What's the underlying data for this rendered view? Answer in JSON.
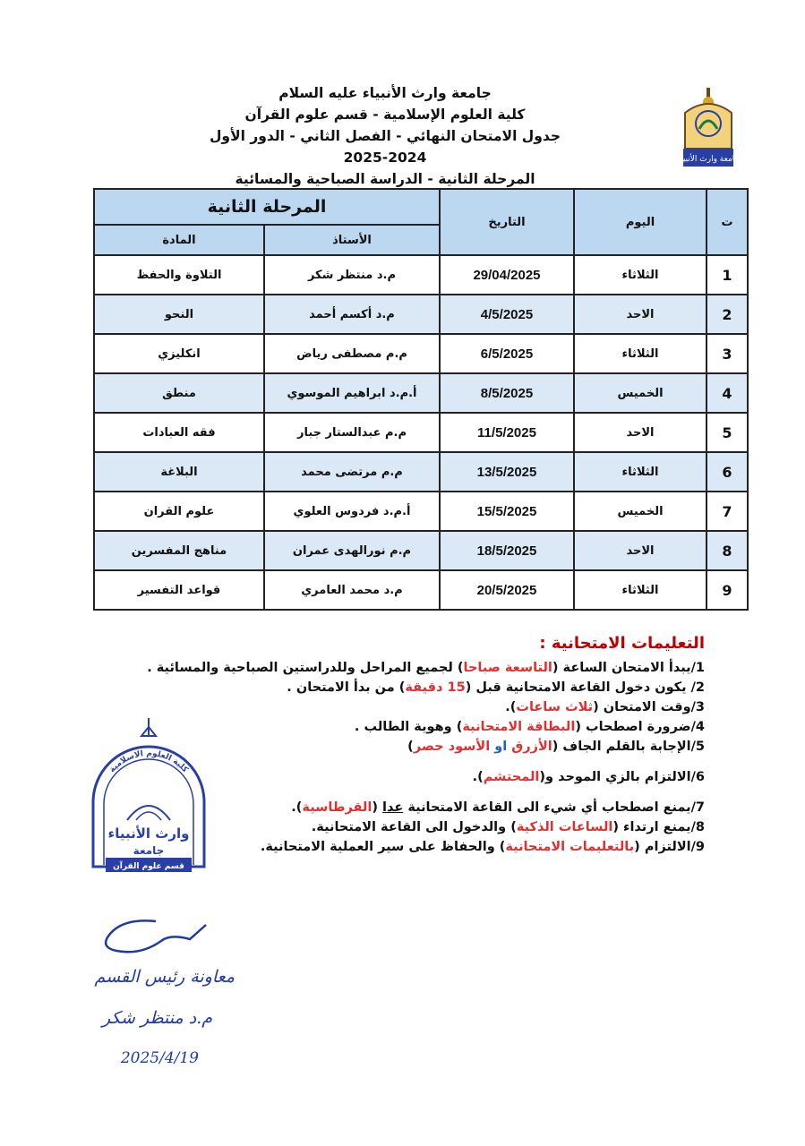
{
  "header": {
    "line1": "جامعة وارث الأنبياء عليه السلام",
    "line2": "كلية العلوم الإسلامية - قسم علوم القرآن",
    "line3": "جدول الامتحان النهائي - الفصل الثاني - الدور الأول 2024-2025",
    "line4": "المرحلة الثانية - الدراسة الصباحية والمسائية"
  },
  "table": {
    "col_num": "ت",
    "col_day": "اليوم",
    "col_date": "التاريخ",
    "stage": "المرحلة الثانية",
    "col_teacher": "الأستاذ",
    "col_subject": "المادة",
    "rows": [
      {
        "num": "1",
        "day": "الثلاثاء",
        "date": "29/04/2025",
        "teacher": "م.د منتظر شكر",
        "subject": "التلاوة والحفظ"
      },
      {
        "num": "2",
        "day": "الاحد",
        "date": "4/5/2025",
        "teacher": "م.د أكسم أحمد",
        "subject": "النحو"
      },
      {
        "num": "3",
        "day": "الثلاثاء",
        "date": "6/5/2025",
        "teacher": "م.م مصطفى رياض",
        "subject": "انكليزي"
      },
      {
        "num": "4",
        "day": "الخميس",
        "date": "8/5/2025",
        "teacher": "أ.م.د ابراهيم الموسوي",
        "subject": "منطق"
      },
      {
        "num": "5",
        "day": "الاحد",
        "date": "11/5/2025",
        "teacher": "م.م عبدالستار جبار",
        "subject": "فقه العبادات"
      },
      {
        "num": "6",
        "day": "الثلاثاء",
        "date": "13/5/2025",
        "teacher": "م.م مرتضى محمد",
        "subject": "البلاغة"
      },
      {
        "num": "7",
        "day": "الخميس",
        "date": "15/5/2025",
        "teacher": "أ.م.د فردوس العلوي",
        "subject": "علوم القران"
      },
      {
        "num": "8",
        "day": "الاحد",
        "date": "18/5/2025",
        "teacher": "م.م نورالهدى عمران",
        "subject": "مناهج المفسرين"
      },
      {
        "num": "9",
        "day": "الثلاثاء",
        "date": "20/5/2025",
        "teacher": "م.د محمد العامري",
        "subject": "قواعد التفسير"
      }
    ]
  },
  "instructions": {
    "title": "التعليمات الامتحانية :",
    "i1_a": "1/يبدأ الامتحان الساعة (",
    "i1_b": "التاسعة صباحا",
    "i1_c": ") لجميع المراحل وللدراستين الصباحية والمسائية .",
    "i2_a": "2/ يكون دخول القاعة الامتحانية قبل (",
    "i2_b": "15 دقيقة",
    "i2_c": ") من بدأ الامتحان .",
    "i3_a": "3/وقت الامتحان (",
    "i3_b": "ثلاث ساعات",
    "i3_c": ").",
    "i4_a": "4/ضرورة اصطحاب (",
    "i4_b": "البطاقة الامتحانية",
    "i4_c": ") وهوية الطالب .",
    "i5_a": "5/الإجابة بالقلم الجاف (",
    "i5_b": "الأزرق",
    "i5_c": " او ",
    "i5_d": "الأسود",
    "i5_e": " حصر",
    "i5_f": ")",
    "i6_a": "6/الالتزام بالزي الموحد و(",
    "i6_b": "المحتشم",
    "i6_c": ").",
    "i7_a": "7/يمنع اصطحاب أي شيء الى القاعة الامتحانية ",
    "i7_b": "عدا",
    "i7_c": " (",
    "i7_d": "القرطاسية",
    "i7_e": ").",
    "i8_a": "8/يمنع ارتداء (",
    "i8_b": "الساعات الذكية",
    "i8_c": ") والدخول الى القاعة الامتحانية.",
    "i9_a": "9/الالتزام (",
    "i9_b": "بالتعليمات الامتحانية",
    "i9_c": ") والحفاظ على سير العملية الامتحانية."
  },
  "logo": {
    "text": "جامعة وارث الأنبياء"
  },
  "stamp": {
    "arc_text": "كلية العلوم الاسلامية",
    "main_text": "وارث الأنبياء",
    "sub_text": "جامعة",
    "bottom_text": "قسم علوم القرآن"
  },
  "signature": {
    "line1": "معاونة رئيس القسم",
    "line2": "م.د منتظر شكر",
    "line3": "2025/4/19"
  },
  "colors": {
    "header_fill": "#bcd7f0",
    "alt_row": "#dbe8f6",
    "accent_red": "#e03030",
    "accent_blue": "#2060c0",
    "stamp_blue": "#2a3fa6",
    "ink_blue": "#1f3aa8"
  }
}
